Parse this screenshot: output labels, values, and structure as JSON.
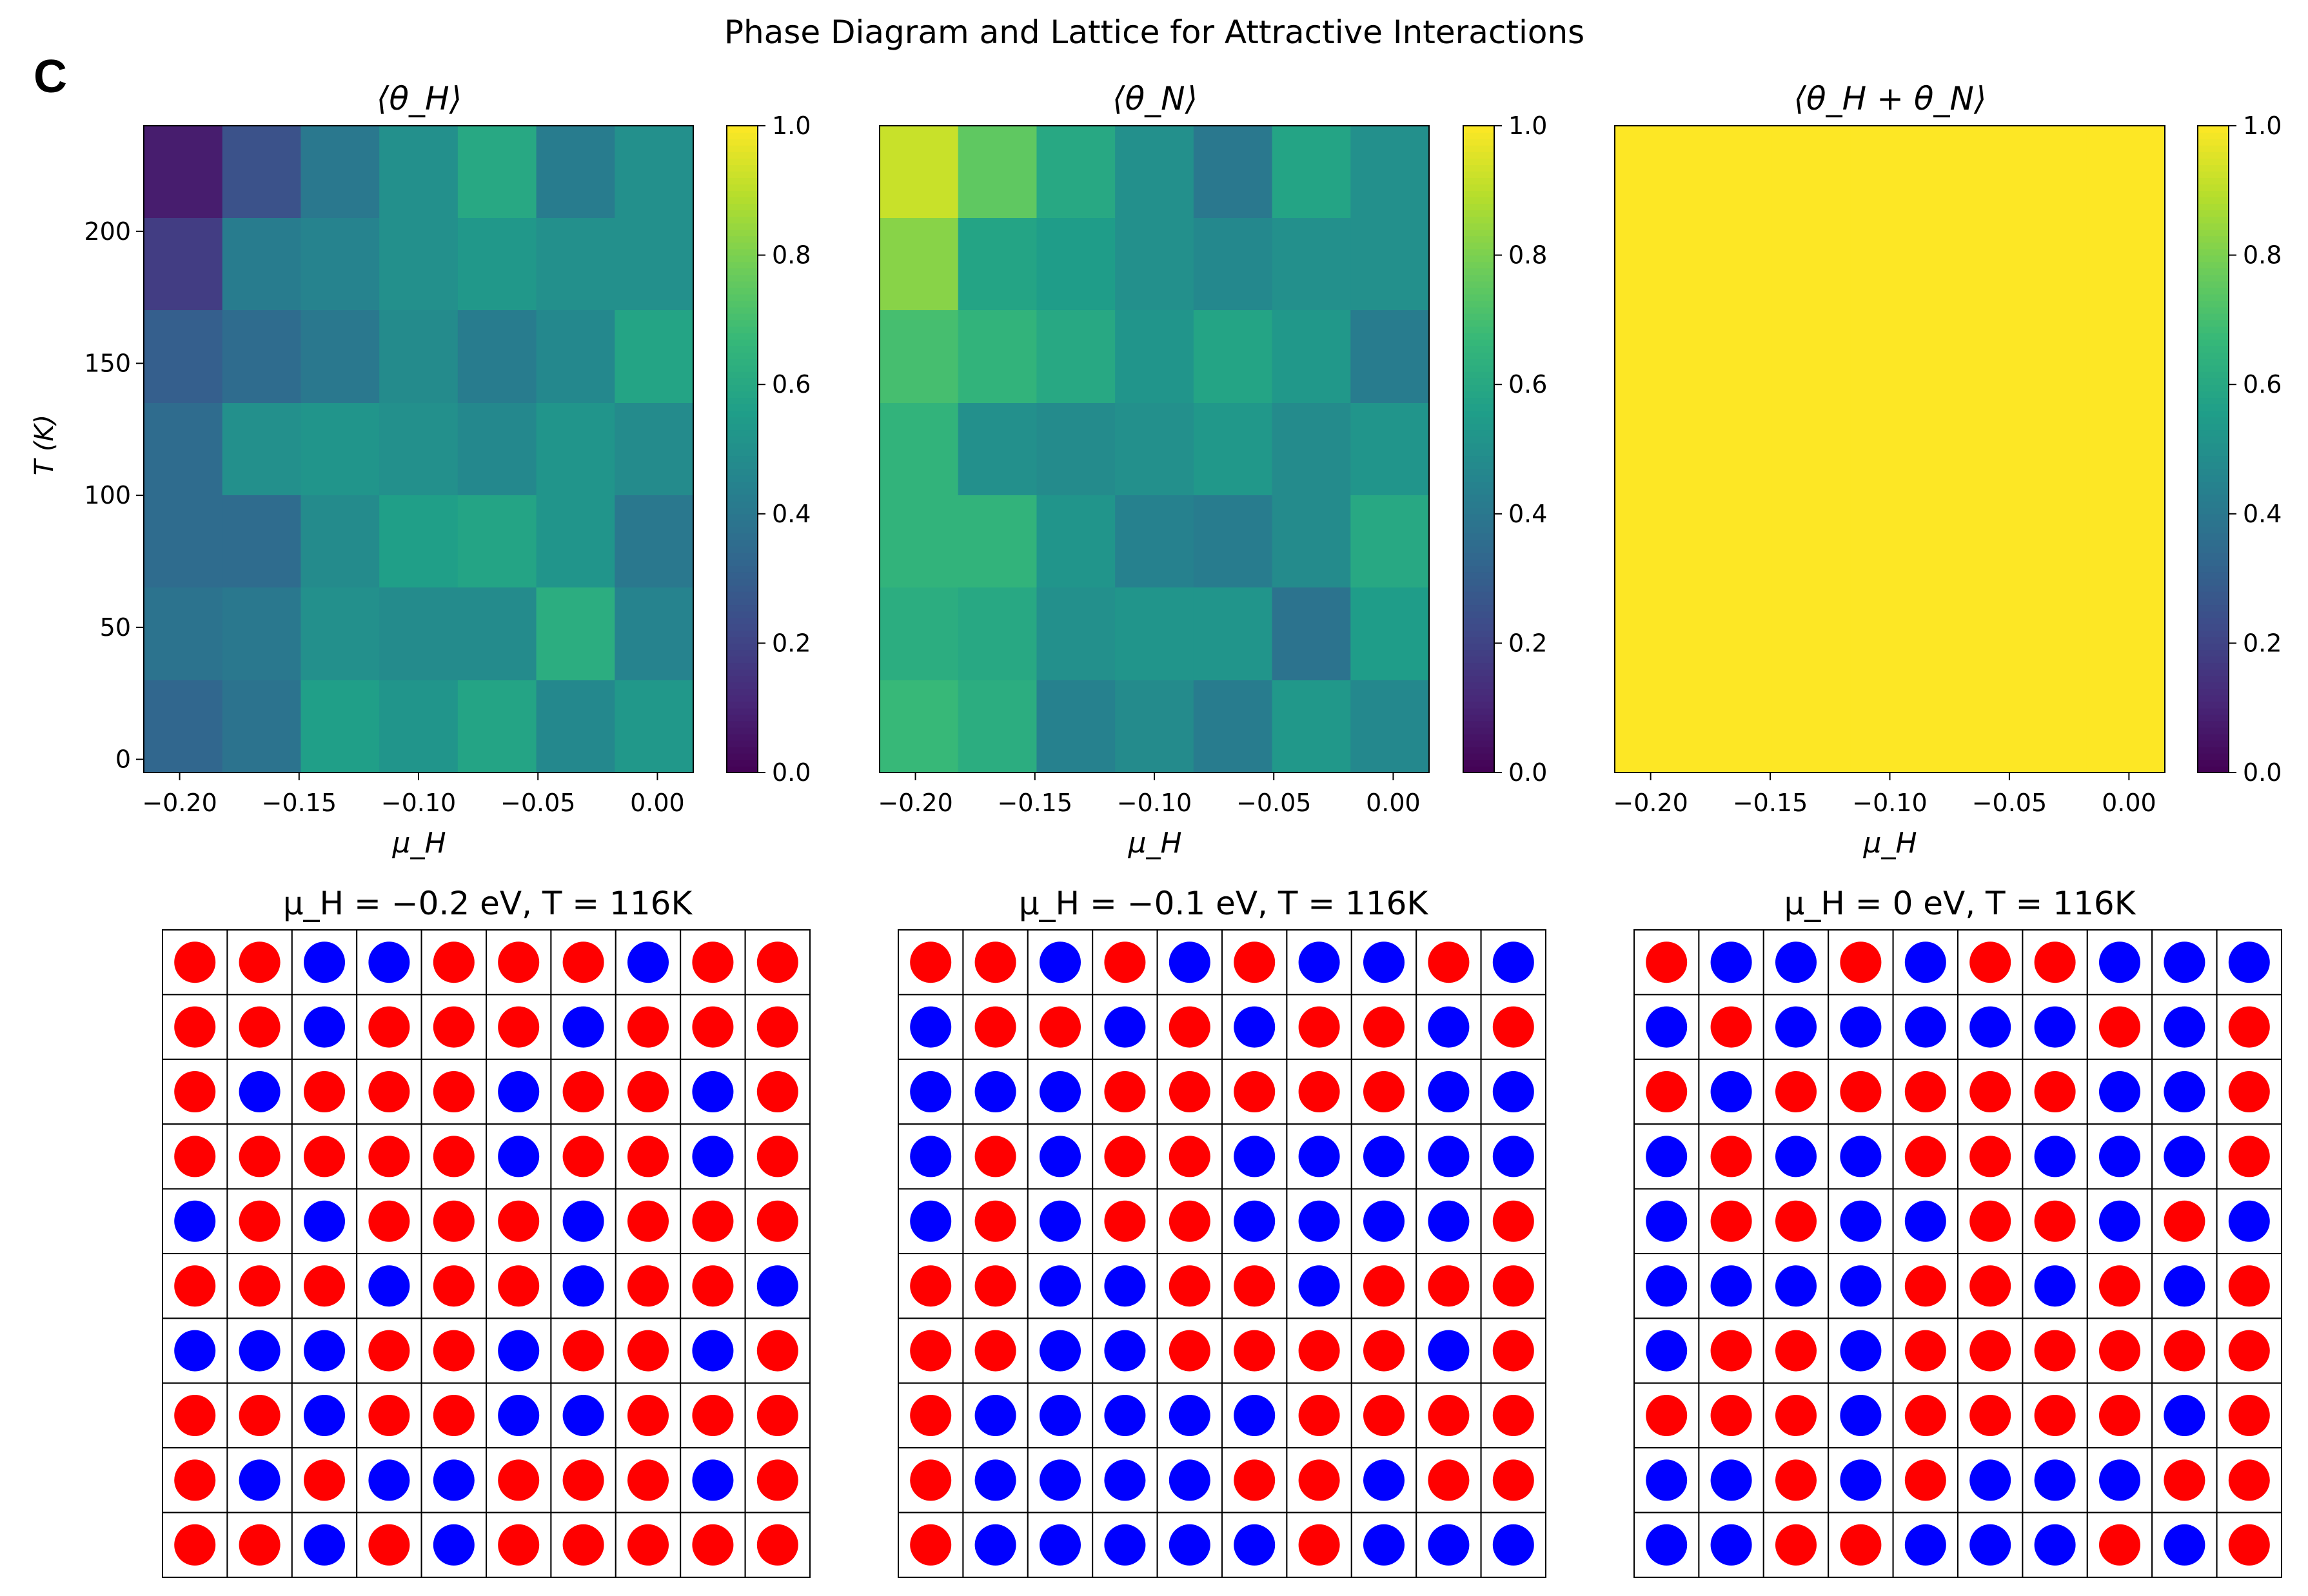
{
  "figure": {
    "title": "Phase Diagram and Lattice for Attractive Interactions",
    "panel_letter": "C"
  },
  "colors": {
    "H": "#ff0000",
    "N": "#0000ff"
  },
  "chart_data": [
    {
      "type": "heatmap",
      "title": "⟨θ_H⟩",
      "xlabel": "μ_H",
      "ylabel": "T (K)",
      "xlim": [
        -0.215,
        0.015
      ],
      "ylim": [
        -5,
        240
      ],
      "x_centers": [
        -0.2,
        -0.167,
        -0.133,
        -0.1,
        -0.067,
        -0.033,
        0.0
      ],
      "y_centers": [
        15.4,
        50.4,
        85.4,
        120.4,
        155.4,
        190.4,
        225.4
      ],
      "xticks": [
        -0.2,
        -0.15,
        -0.1,
        -0.05,
        0.0
      ],
      "xticklabels": [
        "−0.20",
        "−0.15",
        "−0.10",
        "−0.05",
        "0.00"
      ],
      "yticks": [
        0,
        50,
        100,
        150,
        200
      ],
      "yticklabels": [
        "0",
        "50",
        "100",
        "150",
        "200"
      ],
      "colorbar": {
        "cmap": "viridis",
        "vmin": 0.0,
        "vmax": 1.0,
        "ticks": [
          "0.0",
          "0.2",
          "0.4",
          "0.6",
          "0.8",
          "1.0"
        ]
      },
      "values_top_to_bottom": [
        [
          0.08,
          0.25,
          0.4,
          0.5,
          0.6,
          0.42,
          0.5
        ],
        [
          0.18,
          0.42,
          0.45,
          0.5,
          0.53,
          0.5,
          0.5
        ],
        [
          0.3,
          0.35,
          0.4,
          0.48,
          0.42,
          0.47,
          0.58
        ],
        [
          0.35,
          0.5,
          0.52,
          0.5,
          0.47,
          0.52,
          0.48
        ],
        [
          0.35,
          0.35,
          0.48,
          0.56,
          0.58,
          0.52,
          0.4
        ],
        [
          0.38,
          0.4,
          0.5,
          0.48,
          0.48,
          0.62,
          0.45
        ],
        [
          0.33,
          0.38,
          0.56,
          0.52,
          0.58,
          0.47,
          0.53
        ]
      ]
    },
    {
      "type": "heatmap",
      "title": "⟨θ_N⟩",
      "xlabel": "μ_H",
      "xlim": [
        -0.215,
        0.015
      ],
      "ylim": [
        -5,
        240
      ],
      "xticks": [
        -0.2,
        -0.15,
        -0.1,
        -0.05,
        0.0
      ],
      "xticklabels": [
        "−0.20",
        "−0.15",
        "−0.10",
        "−0.05",
        "0.00"
      ],
      "colorbar": {
        "cmap": "viridis",
        "vmin": 0.0,
        "vmax": 1.0,
        "ticks": [
          "0.0",
          "0.2",
          "0.4",
          "0.6",
          "0.8",
          "1.0"
        ]
      },
      "values_top_to_bottom": [
        [
          0.92,
          0.75,
          0.6,
          0.5,
          0.4,
          0.58,
          0.5
        ],
        [
          0.82,
          0.58,
          0.55,
          0.5,
          0.47,
          0.5,
          0.5
        ],
        [
          0.7,
          0.65,
          0.6,
          0.52,
          0.58,
          0.53,
          0.42
        ],
        [
          0.65,
          0.5,
          0.48,
          0.5,
          0.53,
          0.48,
          0.52
        ],
        [
          0.65,
          0.65,
          0.52,
          0.44,
          0.42,
          0.48,
          0.6
        ],
        [
          0.62,
          0.6,
          0.5,
          0.52,
          0.52,
          0.38,
          0.55
        ],
        [
          0.67,
          0.62,
          0.44,
          0.48,
          0.42,
          0.53,
          0.47
        ]
      ]
    },
    {
      "type": "heatmap",
      "title": "⟨θ_H + θ_N⟩",
      "xlabel": "μ_H",
      "xlim": [
        -0.215,
        0.015
      ],
      "ylim": [
        -5,
        240
      ],
      "xticks": [
        -0.2,
        -0.15,
        -0.1,
        -0.05,
        0.0
      ],
      "xticklabels": [
        "−0.20",
        "−0.15",
        "−0.10",
        "−0.05",
        "0.00"
      ],
      "colorbar": {
        "cmap": "viridis",
        "vmin": 0.0,
        "vmax": 1.0,
        "ticks": [
          "0.0",
          "0.2",
          "0.4",
          "0.6",
          "0.8",
          "1.0"
        ]
      },
      "values_top_to_bottom": [
        [
          1,
          1,
          1,
          1,
          1,
          1,
          1
        ],
        [
          1,
          1,
          1,
          1,
          1,
          1,
          1
        ],
        [
          1,
          1,
          1,
          1,
          1,
          1,
          1
        ],
        [
          1,
          1,
          1,
          1,
          1,
          1,
          1
        ],
        [
          1,
          1,
          1,
          1,
          1,
          1,
          1
        ],
        [
          1,
          1,
          1,
          1,
          1,
          1,
          1
        ],
        [
          1,
          1,
          1,
          1,
          1,
          1,
          1
        ]
      ]
    },
    {
      "type": "lattice",
      "title": "μ_H = −0.2 eV, T = 116K",
      "legend_key": {
        "R": "H",
        "B": "N"
      },
      "grid": [
        "RRBBRRRBRR",
        "RRBRRRBRRR",
        "RBRRRBRRBR",
        "RRRRRBRRBR",
        "BRBRRRBRRR",
        "RRRBRRBRRB",
        "BBBRRBRRBR",
        "RRBRRBBRRR",
        "RBRBBRRRBR",
        "RRBRBRRRRR"
      ]
    },
    {
      "type": "lattice",
      "title": "μ_H = −0.1 eV, T = 116K",
      "legend_key": {
        "R": "H",
        "B": "N"
      },
      "grid": [
        "RRBRBRBBRB",
        "BRRBRBRRBR",
        "BBBRRRRRBB",
        "BRBRRBBBBB",
        "BRBRRBBBBR",
        "RRBBRRBRRR",
        "RRBBRRRRBR",
        "RBBBBBRRRR",
        "RBBBBRRBRR",
        "RBBBBBRBBB"
      ]
    },
    {
      "type": "lattice",
      "title": "μ_H = 0 eV, T = 116K",
      "legend_key": {
        "R": "H",
        "B": "N"
      },
      "grid": [
        "RBBRBRRBBB",
        "BRBBBBBRBR",
        "RBRRRRRBBR",
        "BRBBRRBBBR",
        "BRRBBRRBRB",
        "BBBBRRBRBR",
        "BRRBRRRRRR",
        "RRRBRRRRBR",
        "BBRBRBBBRR",
        "BBRRBBBRBR"
      ]
    }
  ]
}
